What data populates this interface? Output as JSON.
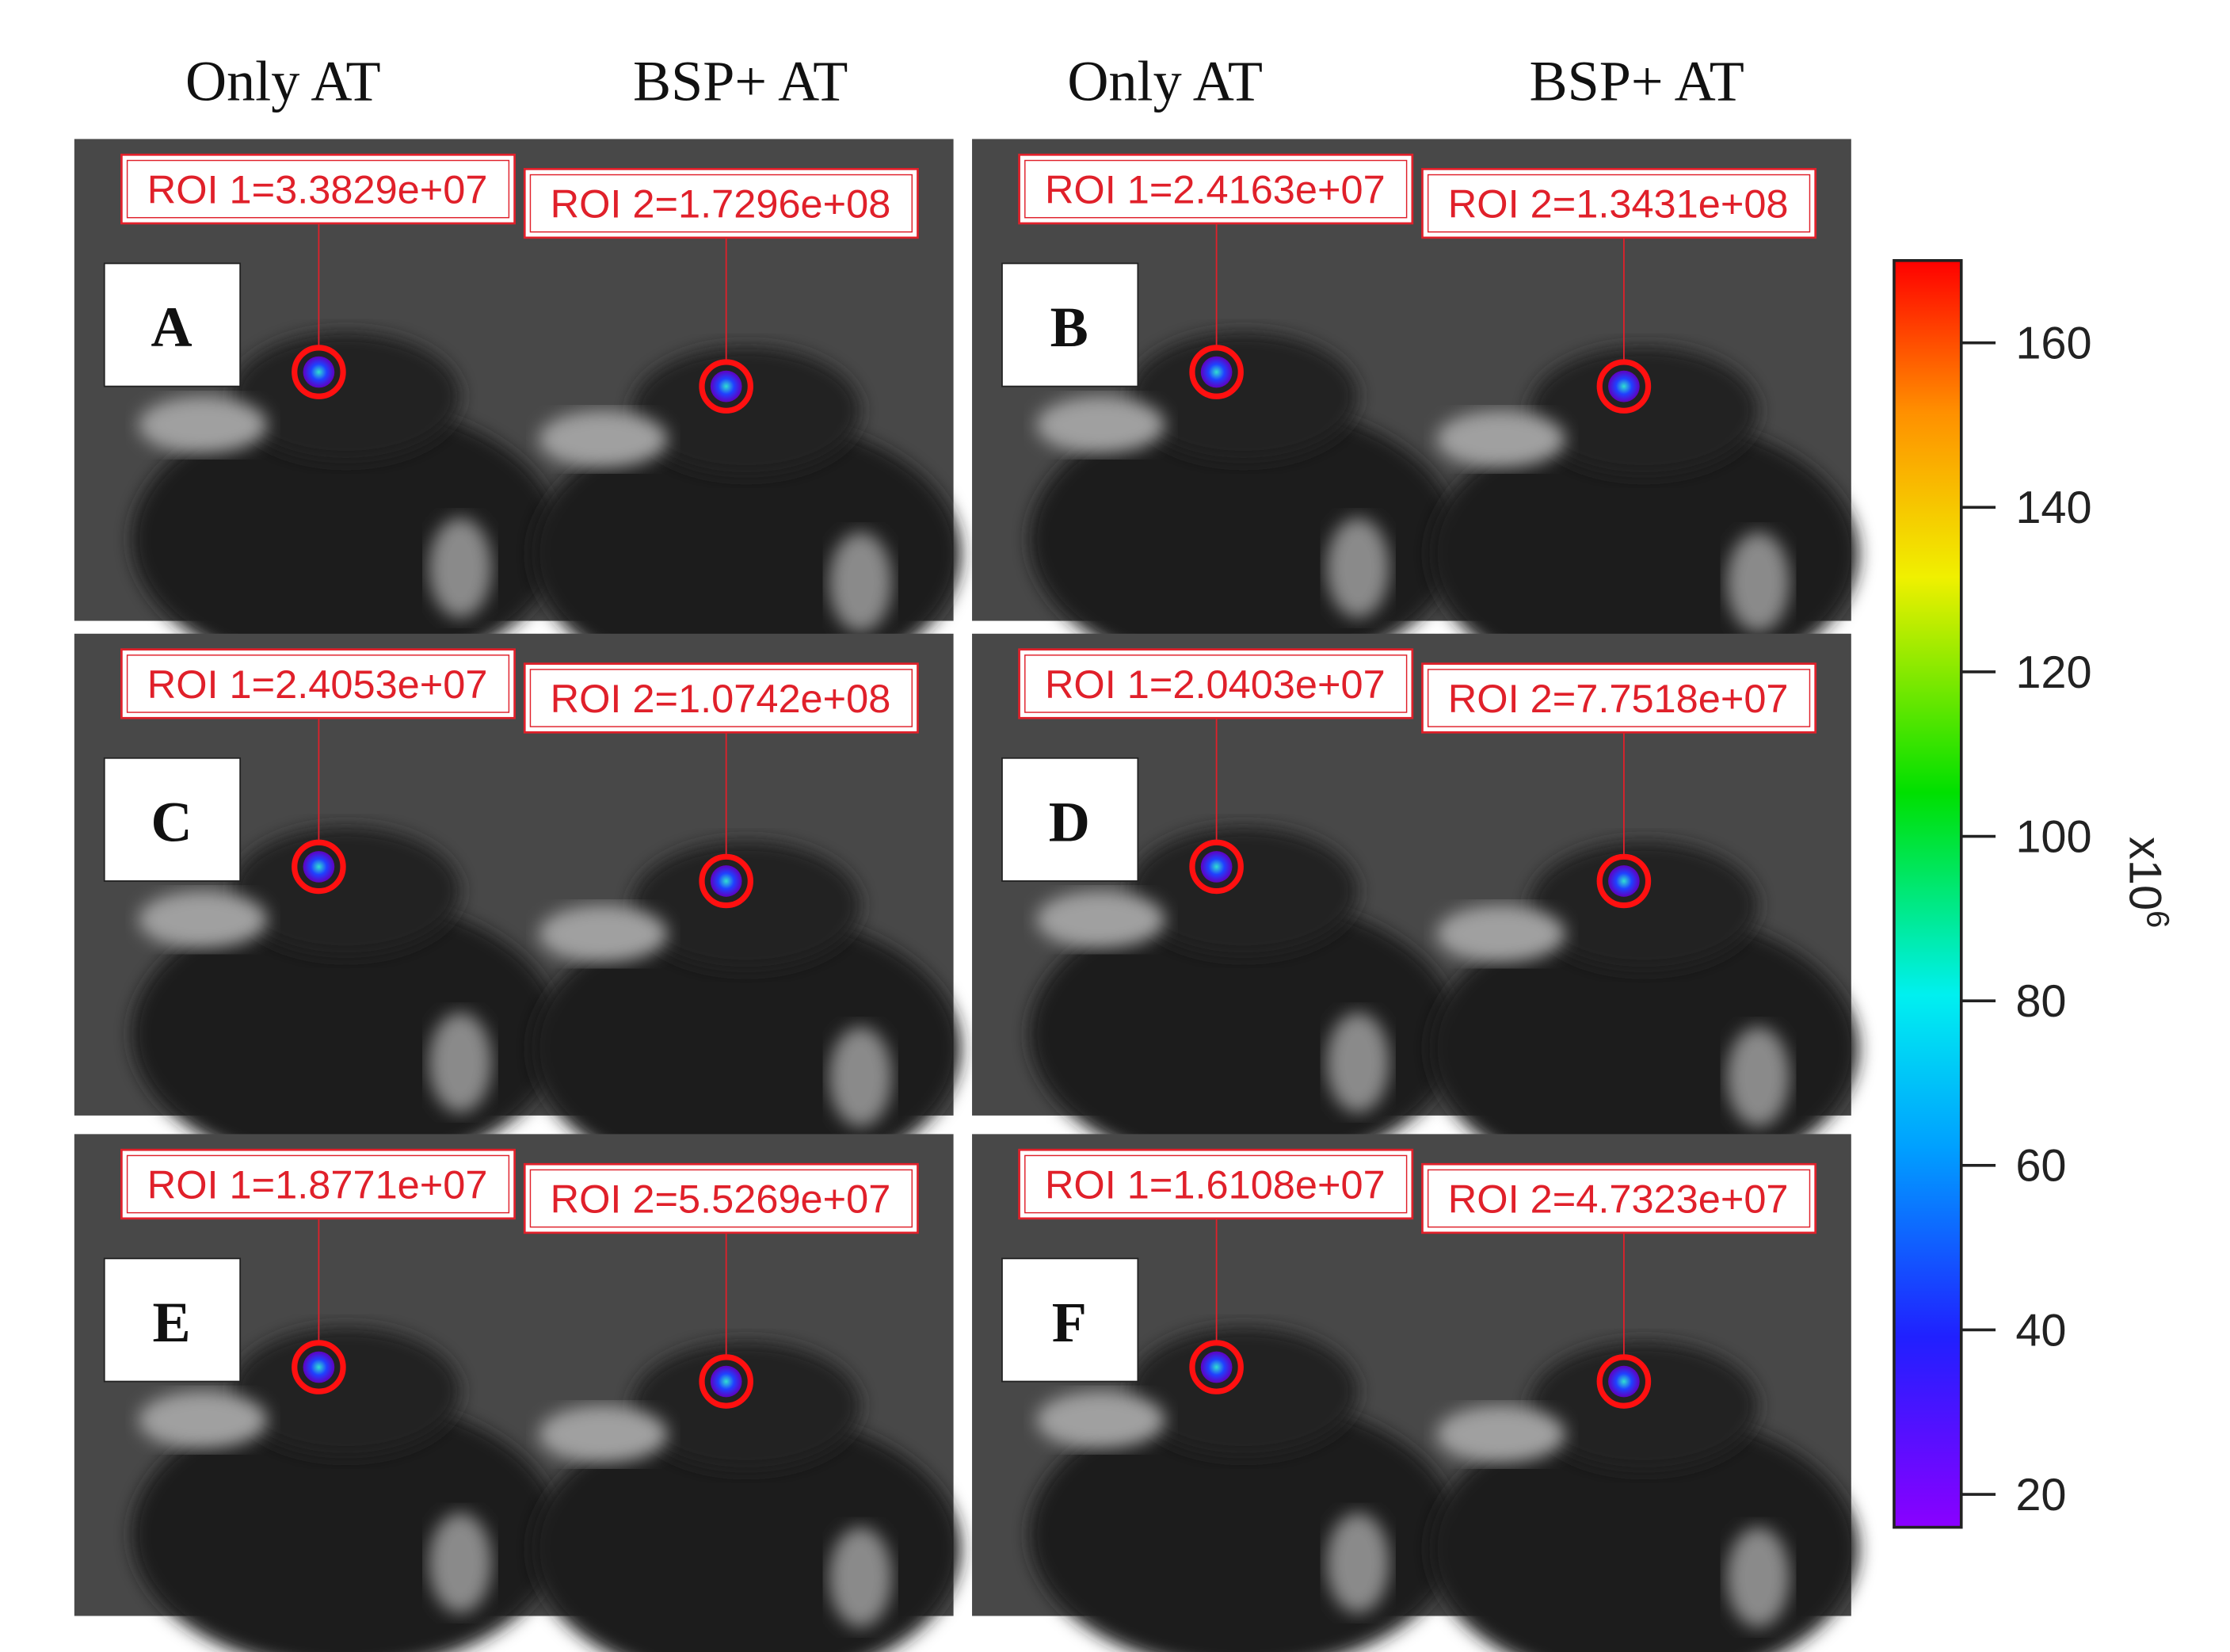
{
  "column_headers": [
    "Only AT",
    "BSP+ AT",
    "Only AT",
    "BSP+ AT"
  ],
  "panels": [
    {
      "letter": "A",
      "roi1": "ROI 1=3.3829e+07",
      "roi2": "ROI 2=1.7296e+08"
    },
    {
      "letter": "B",
      "roi1": "ROI 1=2.4163e+07",
      "roi2": "ROI 2=1.3431e+08"
    },
    {
      "letter": "C",
      "roi1": "ROI 1=2.4053e+07",
      "roi2": "ROI 2=1.0742e+08"
    },
    {
      "letter": "D",
      "roi1": "ROI 1=2.0403e+07",
      "roi2": "ROI 2=7.7518e+07"
    },
    {
      "letter": "E",
      "roi1": "ROI 1=1.8771e+07",
      "roi2": "ROI 2=5.5269e+07"
    },
    {
      "letter": "F",
      "roi1": "ROI 1=1.6108e+07",
      "roi2": "ROI 2=4.7323e+07"
    }
  ],
  "colorbar": {
    "lim": [
      16,
      170
    ],
    "ticks": [
      20,
      40,
      60,
      80,
      100,
      120,
      140,
      160
    ],
    "label": "x10",
    "label_exponent": "6"
  }
}
